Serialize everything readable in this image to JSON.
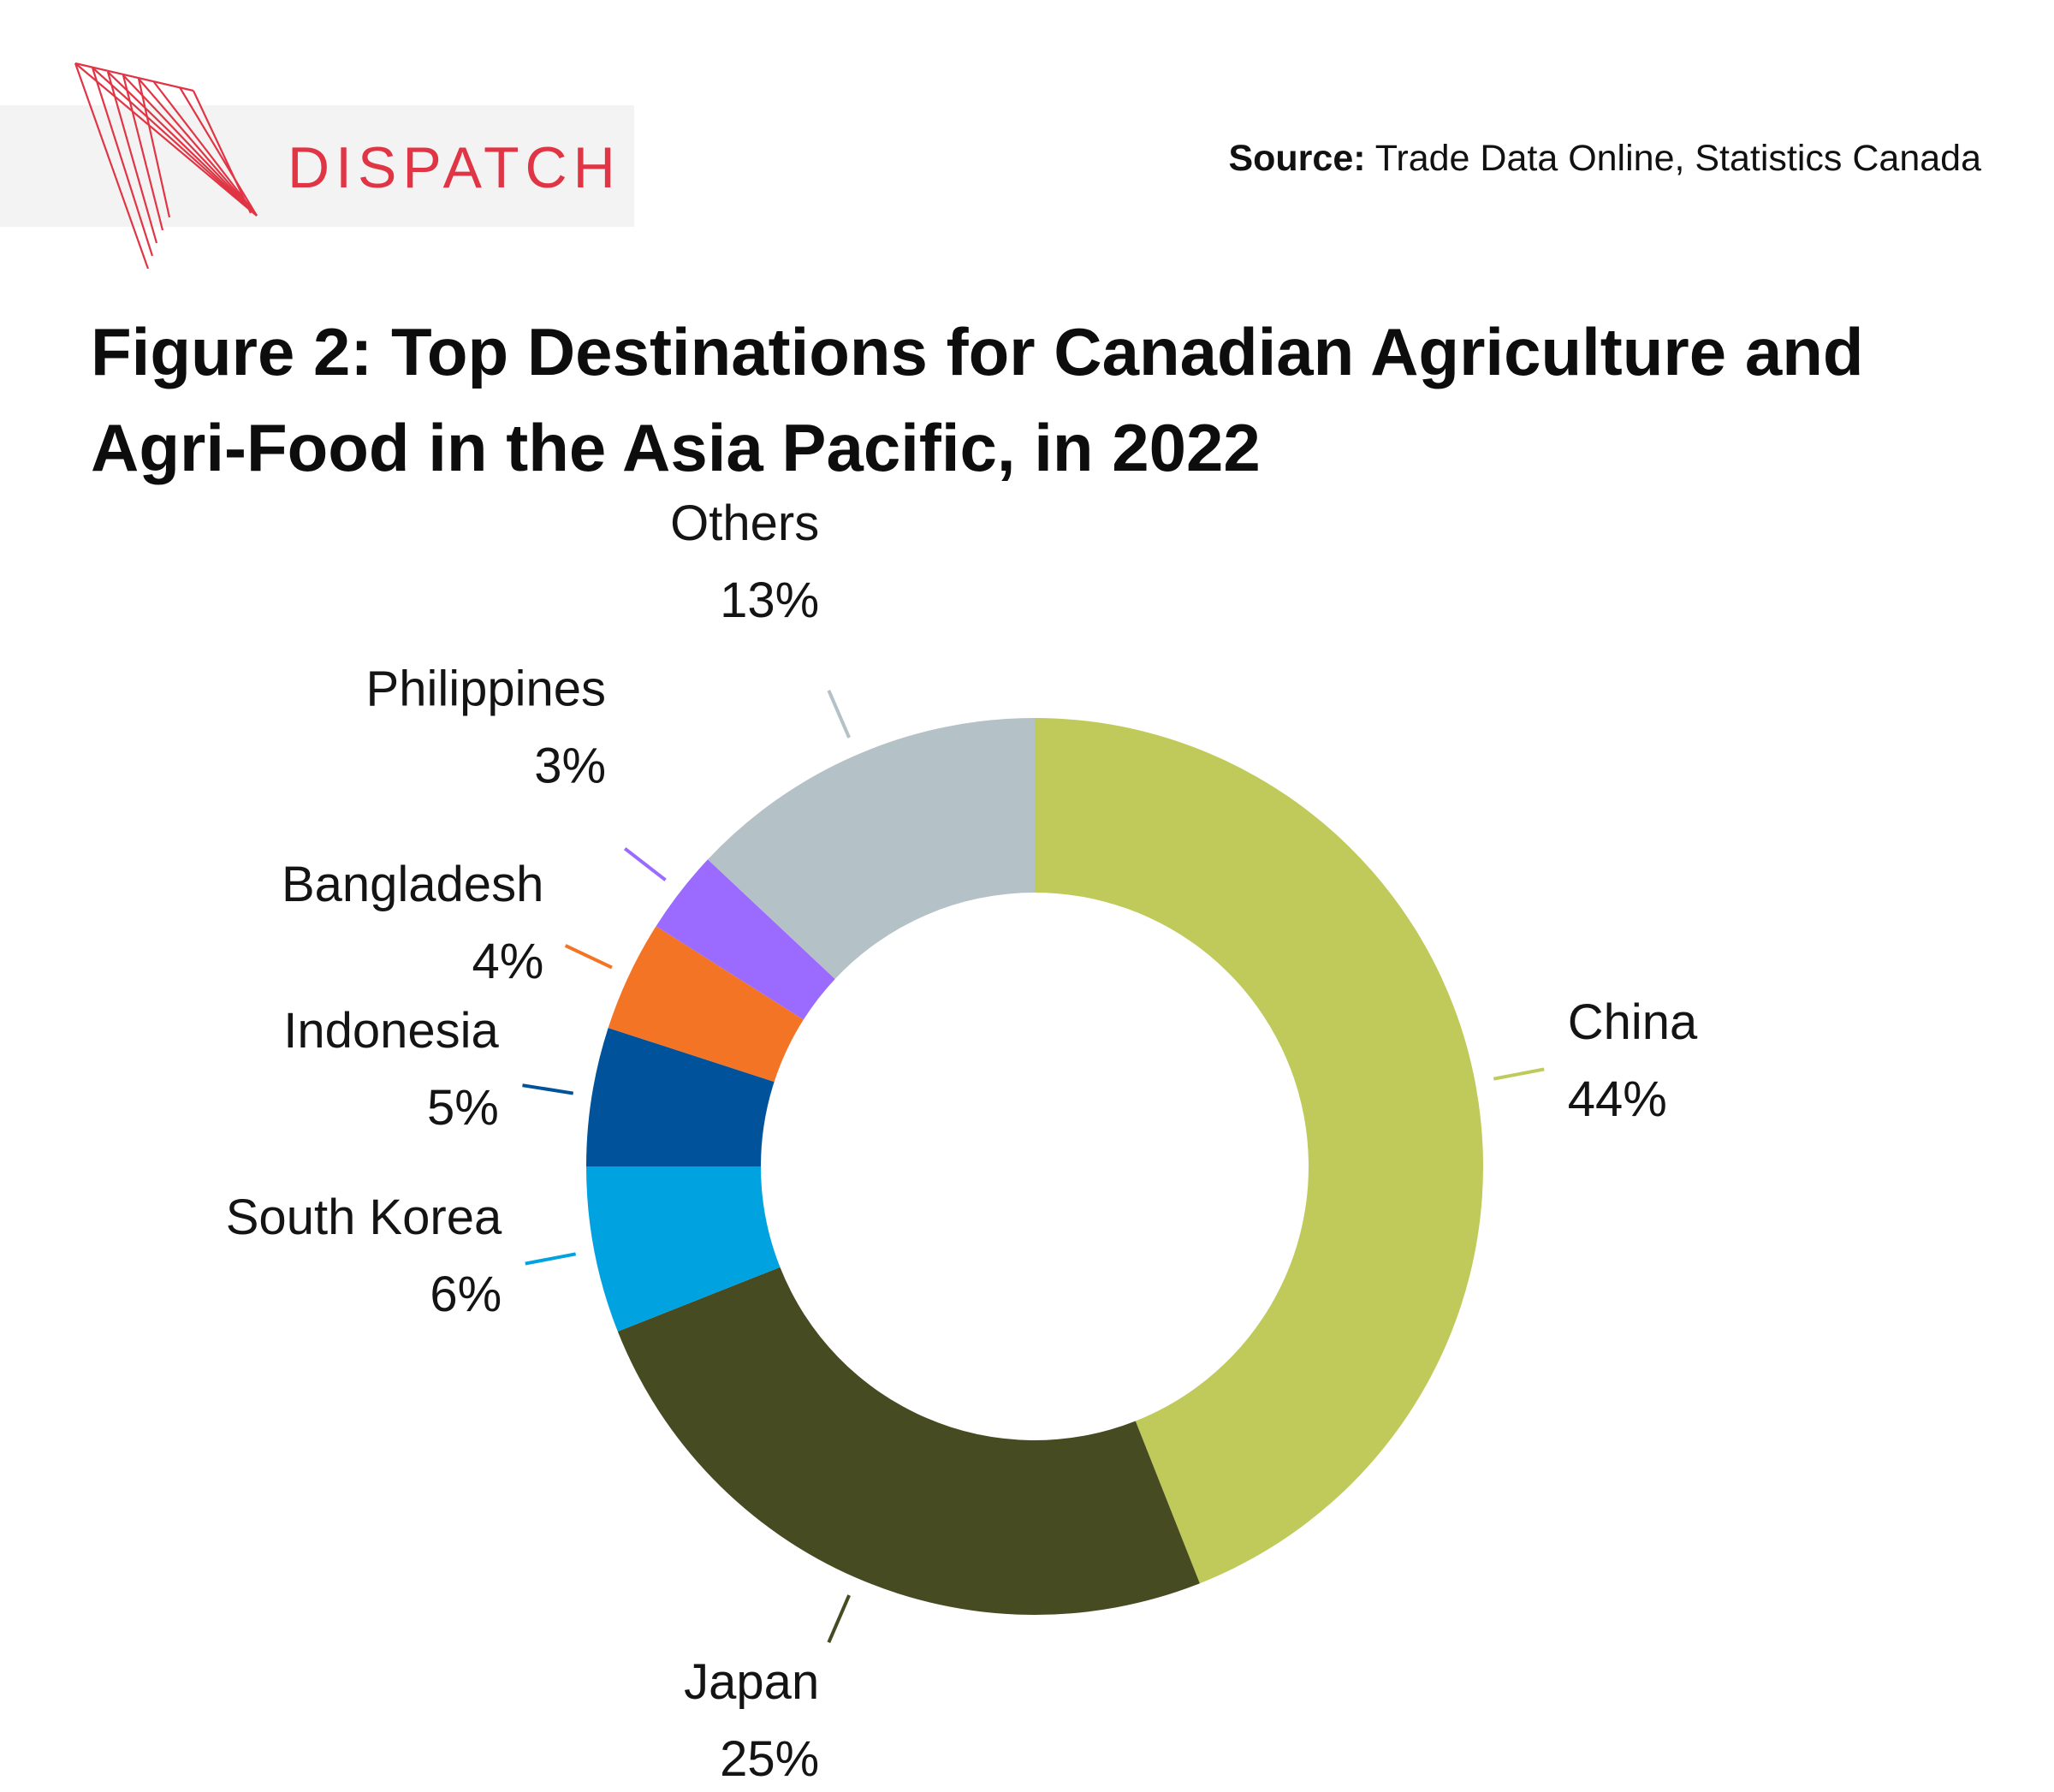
{
  "brand": {
    "name": "DISPATCH",
    "accent_color": "#e03545",
    "logo_icon": "red-line-fan-logo-icon"
  },
  "source": {
    "label": "Source:",
    "text": "Trade Data Online, Statistics Canada"
  },
  "chart_data": {
    "type": "pie",
    "style": "donut",
    "title": "Figure 2: Top Destinations for Canadian Agriculture and Agri-Food in the Asia Pacific, in 2022",
    "start_angle_deg": 0,
    "direction": "clockwise",
    "legend": "none",
    "slices": [
      {
        "name": "China",
        "value": 44,
        "label": "44%",
        "color": "#c0ca5a"
      },
      {
        "name": "Japan",
        "value": 25,
        "label": "25%",
        "color": "#464b22"
      },
      {
        "name": "South Korea",
        "value": 6,
        "label": "6%",
        "color": "#00a2e0"
      },
      {
        "name": "Indonesia",
        "value": 5,
        "label": "5%",
        "color": "#00529b"
      },
      {
        "name": "Bangladesh",
        "value": 4,
        "label": "4%",
        "color": "#f47426"
      },
      {
        "name": "Philippines",
        "value": 3,
        "label": "3%",
        "color": "#9b6bff"
      },
      {
        "name": "Others",
        "value": 13,
        "label": "13%",
        "color": "#b4c2c8"
      }
    ]
  }
}
